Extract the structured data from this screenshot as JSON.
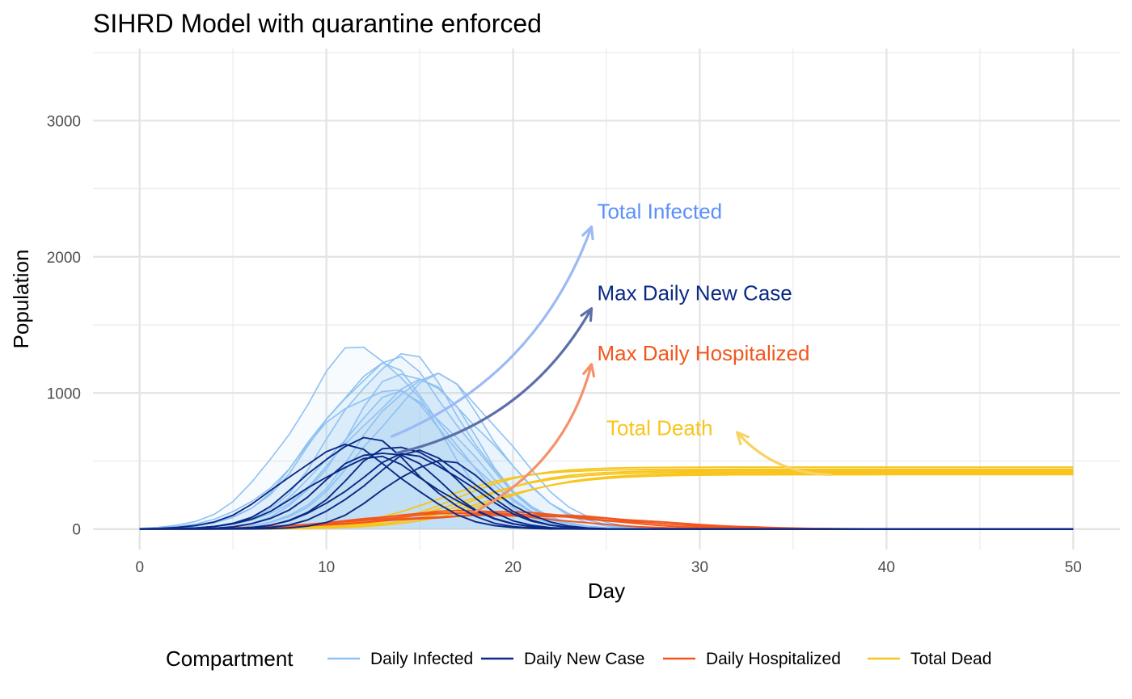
{
  "chart_data": {
    "type": "line",
    "title": "SIHRD Model with quarantine enforced",
    "xlabel": "Day",
    "ylabel": "Population",
    "xlim": [
      -2.5,
      52.5
    ],
    "ylim": [
      -150,
      3530
    ],
    "x_ticks": [
      0,
      10,
      20,
      30,
      40,
      50
    ],
    "y_ticks": [
      0,
      1000,
      2000,
      3000
    ],
    "grid": true,
    "legend": {
      "title": "Compartment",
      "position": "bottom",
      "entries": [
        {
          "label": "Daily Infected",
          "color": "#8fc1f2"
        },
        {
          "label": "Daily New Case",
          "color": "#0b2a85"
        },
        {
          "label": "Daily Hospitalized",
          "color": "#f2561d"
        },
        {
          "label": "Total Dead",
          "color": "#f8c51c"
        }
      ]
    },
    "days": [
      0,
      1,
      2,
      3,
      4,
      5,
      6,
      7,
      8,
      9,
      10,
      11,
      12,
      13,
      14,
      15,
      16,
      17,
      18,
      19,
      20,
      21,
      22,
      23,
      24,
      25,
      26,
      27,
      28,
      29,
      30,
      31,
      32,
      33,
      34,
      35,
      36,
      37,
      38,
      39,
      40,
      41,
      42,
      43,
      44,
      45,
      46,
      47,
      48,
      49,
      50
    ],
    "series": [
      {
        "group": "Daily Infected",
        "color": "#8fc1f2",
        "peak": 1330,
        "peak_day": 12,
        "width_days": 3.6
      },
      {
        "group": "Daily Infected",
        "color": "#8fc1f2",
        "peak": 1270,
        "peak_day": 14,
        "width_days": 3.4
      },
      {
        "group": "Daily Infected",
        "color": "#8fc1f2",
        "peak": 1230,
        "peak_day": 13.5,
        "width_days": 3.7
      },
      {
        "group": "Daily Infected",
        "color": "#8fc1f2",
        "peak": 1180,
        "peak_day": 13,
        "width_days": 3.5
      },
      {
        "group": "Daily Infected",
        "color": "#8fc1f2",
        "peak": 1160,
        "peak_day": 14.5,
        "width_days": 3.3
      },
      {
        "group": "Daily Infected",
        "color": "#8fc1f2",
        "peak": 1130,
        "peak_day": 15.5,
        "width_days": 3.4
      },
      {
        "group": "Daily Infected",
        "color": "#8fc1f2",
        "peak": 1100,
        "peak_day": 16,
        "width_days": 3.6
      },
      {
        "group": "Daily Infected",
        "color": "#8fc1f2",
        "peak": 1060,
        "peak_day": 15,
        "width_days": 3.8
      },
      {
        "group": "Daily Infected",
        "color": "#8fc1f2",
        "peak": 1020,
        "peak_day": 13,
        "width_days": 3.9
      },
      {
        "group": "Daily Infected",
        "color": "#8fc1f2",
        "peak": 980,
        "peak_day": 14,
        "width_days": 3.5
      },
      {
        "group": "Daily New Case",
        "color": "#0b2a85",
        "peak": 660,
        "peak_day": 12,
        "width_days": 3.0
      },
      {
        "group": "Daily New Case",
        "color": "#0b2a85",
        "peak": 620,
        "peak_day": 14,
        "width_days": 2.8
      },
      {
        "group": "Daily New Case",
        "color": "#0b2a85",
        "peak": 600,
        "peak_day": 11,
        "width_days": 3.2
      },
      {
        "group": "Daily New Case",
        "color": "#0b2a85",
        "peak": 580,
        "peak_day": 13,
        "width_days": 3.0
      },
      {
        "group": "Daily New Case",
        "color": "#0b2a85",
        "peak": 560,
        "peak_day": 15,
        "width_days": 2.9
      },
      {
        "group": "Daily New Case",
        "color": "#0b2a85",
        "peak": 540,
        "peak_day": 14.5,
        "width_days": 3.1
      },
      {
        "group": "Daily New Case",
        "color": "#0b2a85",
        "peak": 520,
        "peak_day": 12.5,
        "width_days": 3.3
      },
      {
        "group": "Daily New Case",
        "color": "#0b2a85",
        "peak": 500,
        "peak_day": 16,
        "width_days": 2.8
      },
      {
        "group": "Daily Hospitalized",
        "color": "#f2561d",
        "peak": 135,
        "peak_day": 18,
        "width_days": 5.5
      },
      {
        "group": "Daily Hospitalized",
        "color": "#f2561d",
        "peak": 125,
        "peak_day": 19,
        "width_days": 6.0
      },
      {
        "group": "Daily Hospitalized",
        "color": "#f2561d",
        "peak": 120,
        "peak_day": 17,
        "width_days": 5.0
      },
      {
        "group": "Daily Hospitalized",
        "color": "#f2561d",
        "peak": 110,
        "peak_day": 20,
        "width_days": 6.5
      },
      {
        "group": "Daily Hospitalized",
        "color": "#f2561d",
        "peak": 100,
        "peak_day": 19.5,
        "width_days": 6.2
      },
      {
        "group": "Total Dead",
        "color": "#f8c51c",
        "plateau": 455,
        "midpoint_day": 17,
        "spread_days": 2.0
      },
      {
        "group": "Total Dead",
        "color": "#f8c51c",
        "plateau": 440,
        "midpoint_day": 16,
        "spread_days": 2.2
      },
      {
        "group": "Total Dead",
        "color": "#f8c51c",
        "plateau": 430,
        "midpoint_day": 18,
        "spread_days": 2.1
      },
      {
        "group": "Total Dead",
        "color": "#f8c51c",
        "plateau": 420,
        "midpoint_day": 17.5,
        "spread_days": 2.4
      },
      {
        "group": "Total Dead",
        "color": "#f8c51c",
        "plateau": 410,
        "midpoint_day": 19,
        "spread_days": 2.3
      },
      {
        "group": "Total Dead",
        "color": "#f8c51c",
        "plateau": 400,
        "midpoint_day": 18.5,
        "spread_days": 2.5
      }
    ],
    "annotations": [
      {
        "text": "Total Infected",
        "color": "#5b8ff9",
        "x": 24.5,
        "y": 2280,
        "arrow_from": [
          13.5,
          680
        ],
        "arrow_to": [
          24.2,
          2220
        ],
        "arrow_color": "#9bbaf5"
      },
      {
        "text": "Max Daily New Case",
        "color": "#0b2a85",
        "x": 24.5,
        "y": 1680,
        "arrow_from": [
          13.8,
          560
        ],
        "arrow_to": [
          24.2,
          1620
        ],
        "arrow_color": "#5c6fa8"
      },
      {
        "text": "Max Daily Hospitalized",
        "color": "#f2561d",
        "x": 24.5,
        "y": 1240,
        "arrow_from": [
          18,
          130
        ],
        "arrow_to": [
          24.2,
          1210
        ],
        "arrow_color": "#f5916b"
      },
      {
        "text": "Total Death",
        "color": "#f8c51c",
        "x": 25,
        "y": 690,
        "arrow_from": [
          37,
          400
        ],
        "arrow_to": [
          32,
          710
        ],
        "arrow_color": "#f9d264"
      }
    ]
  }
}
